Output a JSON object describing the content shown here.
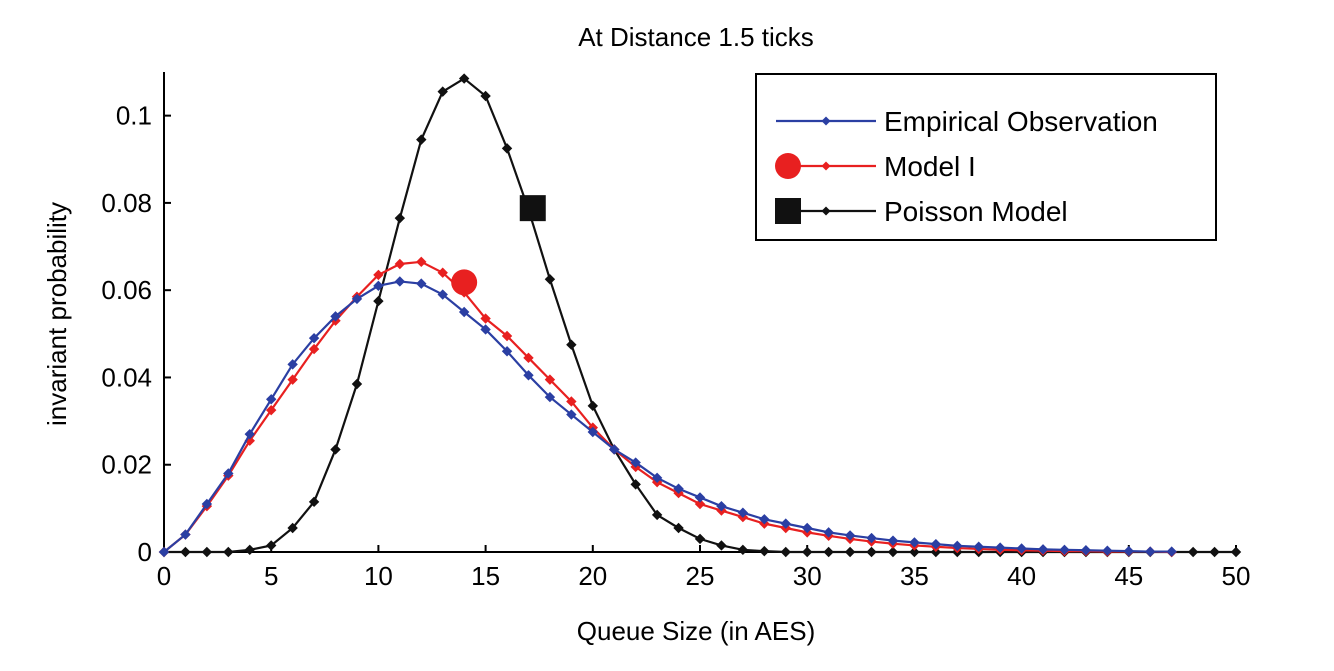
{
  "chart_data": {
    "type": "line",
    "title": "At Distance 1.5 ticks",
    "xlabel": "Queue Size (in AES)",
    "ylabel": "invariant probability",
    "xlim": [
      0,
      50
    ],
    "ylim": [
      0,
      0.11
    ],
    "xticks": [
      0,
      5,
      10,
      15,
      20,
      25,
      30,
      35,
      40,
      45,
      50
    ],
    "yticks": [
      0,
      0.02,
      0.04,
      0.06,
      0.08,
      0.1
    ],
    "xtick_labels": [
      "0",
      "5",
      "10",
      "15",
      "20",
      "25",
      "30",
      "35",
      "40",
      "45",
      "50"
    ],
    "ytick_labels": [
      "0",
      "0.02",
      "0.04",
      "0.06",
      "0.08",
      "0.1"
    ],
    "grid": false,
    "legend_position": "top-right",
    "series": [
      {
        "name": "Empirical Observation",
        "color": "#2b3fa3",
        "marker": "diamond",
        "legend_marker": "diamond",
        "x": [
          0,
          1,
          2,
          3,
          4,
          5,
          6,
          7,
          8,
          9,
          10,
          11,
          12,
          13,
          14,
          15,
          16,
          17,
          18,
          19,
          20,
          21,
          22,
          23,
          24,
          25,
          26,
          27,
          28,
          29,
          30,
          31,
          32,
          33,
          34,
          35,
          36,
          37,
          38,
          39,
          40,
          41,
          42,
          43,
          44,
          45,
          46,
          47
        ],
        "y": [
          0,
          0.004,
          0.011,
          0.018,
          0.027,
          0.035,
          0.043,
          0.049,
          0.054,
          0.058,
          0.061,
          0.062,
          0.0615,
          0.059,
          0.055,
          0.051,
          0.046,
          0.0405,
          0.0355,
          0.0315,
          0.0275,
          0.0235,
          0.0205,
          0.017,
          0.0145,
          0.0125,
          0.0105,
          0.009,
          0.0075,
          0.0065,
          0.0055,
          0.0045,
          0.0038,
          0.0032,
          0.0026,
          0.0022,
          0.0018,
          0.0014,
          0.0012,
          0.001,
          0.0008,
          0.0006,
          0.0005,
          0.0004,
          0.0003,
          0.0002,
          0.0001,
          0.0001
        ]
      },
      {
        "name": "Model I",
        "color": "#e82020",
        "marker": "diamond",
        "legend_marker": "circle",
        "x": [
          0,
          1,
          2,
          3,
          4,
          5,
          6,
          7,
          8,
          9,
          10,
          11,
          12,
          13,
          14,
          15,
          16,
          17,
          18,
          19,
          20,
          21,
          22,
          23,
          24,
          25,
          26,
          27,
          28,
          29,
          30,
          31,
          32,
          33,
          34,
          35,
          36,
          37,
          38,
          39,
          40,
          41,
          42,
          43,
          44,
          45,
          46,
          47
        ],
        "y": [
          0,
          0.004,
          0.0105,
          0.0175,
          0.0255,
          0.0325,
          0.0395,
          0.0465,
          0.053,
          0.0585,
          0.0635,
          0.066,
          0.0665,
          0.064,
          0.0595,
          0.0535,
          0.0495,
          0.0445,
          0.0395,
          0.0345,
          0.0285,
          0.0235,
          0.0195,
          0.016,
          0.0135,
          0.011,
          0.0095,
          0.008,
          0.0065,
          0.0055,
          0.0045,
          0.0037,
          0.003,
          0.0024,
          0.0019,
          0.0015,
          0.0012,
          0.0009,
          0.0007,
          0.0005,
          0.0004,
          0.0003,
          0.0002,
          0.0002,
          0.0001,
          0.0001,
          0.0001,
          0
        ]
      },
      {
        "name": "Poisson Model",
        "color": "#111111",
        "marker": "diamond",
        "legend_marker": "square",
        "x": [
          0,
          1,
          2,
          3,
          4,
          5,
          6,
          7,
          8,
          9,
          10,
          11,
          12,
          13,
          14,
          15,
          16,
          17,
          18,
          19,
          20,
          21,
          22,
          23,
          24,
          25,
          26,
          27,
          28,
          29,
          30,
          31,
          32,
          33,
          34,
          35,
          36,
          37,
          38,
          39,
          40,
          41,
          42,
          43,
          44,
          45,
          46,
          47,
          48,
          49,
          50
        ],
        "y": [
          0,
          0,
          0,
          0,
          0.0005,
          0.0015,
          0.0055,
          0.0115,
          0.0235,
          0.0385,
          0.0575,
          0.0765,
          0.0945,
          0.1055,
          0.1085,
          0.1045,
          0.0925,
          0.0785,
          0.0625,
          0.0475,
          0.0335,
          0.0235,
          0.0155,
          0.0085,
          0.0055,
          0.003,
          0.0015,
          0.0005,
          0.0002,
          0,
          0,
          0,
          0,
          0,
          0,
          0,
          0,
          0,
          0,
          0,
          0,
          0,
          0,
          0,
          0,
          0,
          0,
          0,
          0,
          0,
          0
        ]
      }
    ],
    "annotations": [
      {
        "label": "Model I",
        "shape": "circle",
        "color": "#e82020",
        "x": 14,
        "y": 0.0618
      },
      {
        "label": "Poisson Model",
        "shape": "square",
        "color": "#111111",
        "x": 17.2,
        "y": 0.0788
      }
    ]
  }
}
